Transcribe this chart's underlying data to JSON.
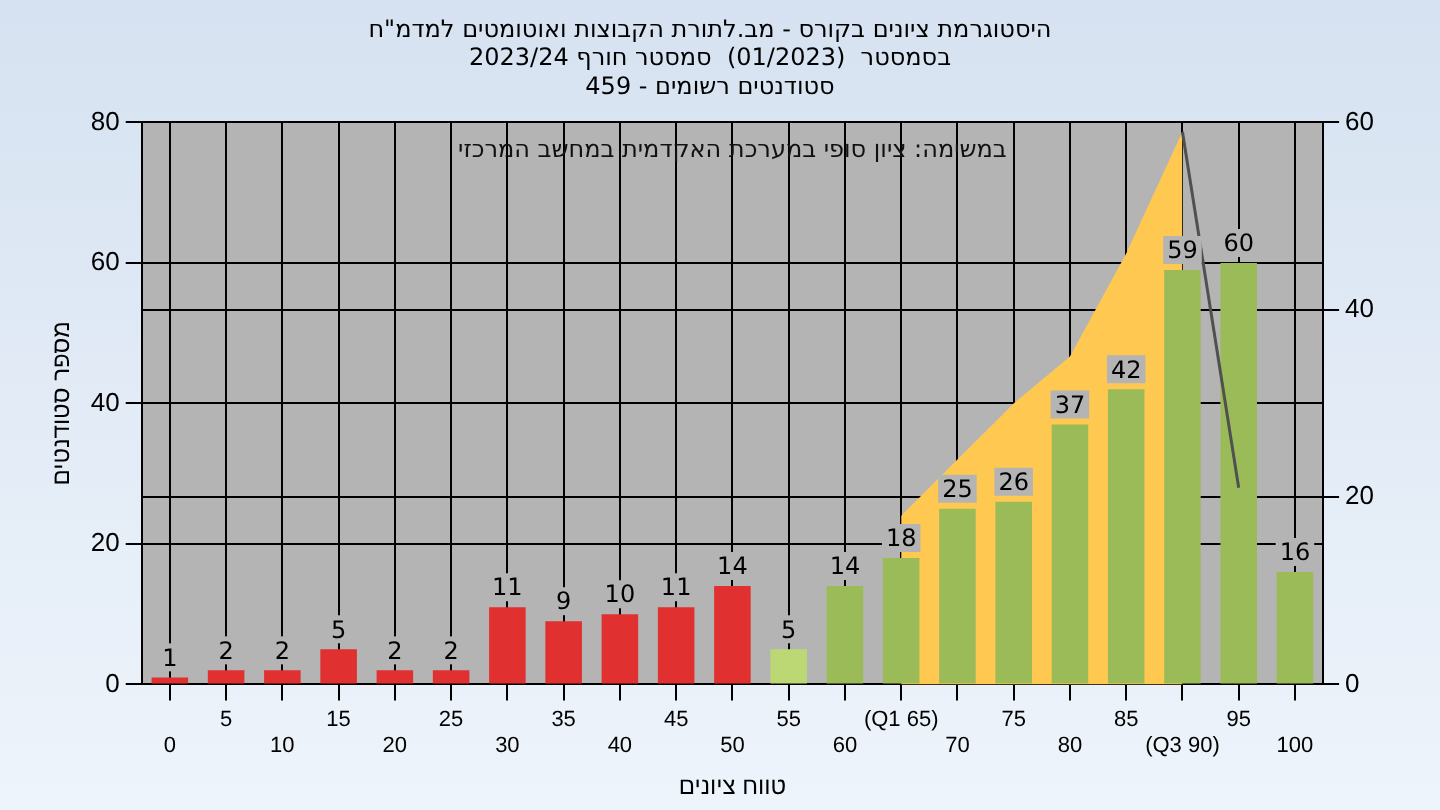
{
  "chart_data": {
    "type": "bar",
    "title": "היסטוגרמת ציונים בקורס - מב.לתורת הקבוצות ואוטומטים למדמ\"ח",
    "subtitle": "בסמסטר  (01/2023)  סמסטר חורף 2023/24\nסטודנטים רשומים - 459",
    "xlabel": "טווח ציונים",
    "ylabel": "מספר סטודנטים",
    "annotations": [
      "במשימה: ציון סופי במערכת האקדמית במחשב המרכזי"
    ],
    "categories": [
      "0",
      "5",
      "10",
      "15",
      "20",
      "25",
      "30",
      "35",
      "40",
      "45",
      "50",
      "55",
      "60",
      "(Q1 65)",
      "70",
      "75",
      "80",
      "85",
      "(Q3 90)",
      "95",
      "100"
    ],
    "series": [
      {
        "type": "area",
        "axis": "y2",
        "color": "#ffc850",
        "values": [
          null,
          null,
          null,
          null,
          null,
          null,
          null,
          null,
          null,
          null,
          null,
          null,
          null,
          18,
          24,
          30,
          35,
          46,
          59,
          null,
          null
        ]
      },
      {
        "type": "line",
        "axis": "y2",
        "color": "#505050",
        "values": [
          null,
          null,
          null,
          null,
          null,
          null,
          null,
          null,
          null,
          null,
          null,
          null,
          null,
          null,
          null,
          null,
          null,
          null,
          59,
          21,
          null
        ]
      },
      {
        "colors": [
          "#e03030",
          "#e03030",
          "#e03030",
          "#e03030",
          "#e03030",
          "#e03030",
          "#e03030",
          "#e03030",
          "#e03030",
          "#e03030",
          "#e03030",
          "#bcd874",
          "#9bbb59",
          "#9bbb59",
          "#9bbb59",
          "#9bbb59",
          "#9bbb59",
          "#9bbb59",
          "#9bbb59",
          "#9bbb59",
          "#9bbb59"
        ],
        "values": [
          1,
          2,
          2,
          5,
          2,
          2,
          11,
          9,
          10,
          11,
          14,
          5,
          14,
          18,
          25,
          26,
          37,
          42,
          59,
          60,
          16
        ],
        "value_labels": [
          "1",
          "2",
          "2",
          "5",
          "2",
          "2",
          "11",
          "9",
          "10",
          "11",
          "14",
          "5",
          "14",
          "18",
          "25",
          "26",
          "37",
          "42",
          "59",
          "60",
          "16"
        ]
      }
    ],
    "ylim": [
      0,
      80
    ],
    "yticks": [
      0,
      20,
      40,
      60,
      80
    ],
    "y2lim": [
      0,
      60
    ],
    "y2ticks": [
      0,
      20,
      40,
      60
    ],
    "grid": true,
    "legend": false
  }
}
